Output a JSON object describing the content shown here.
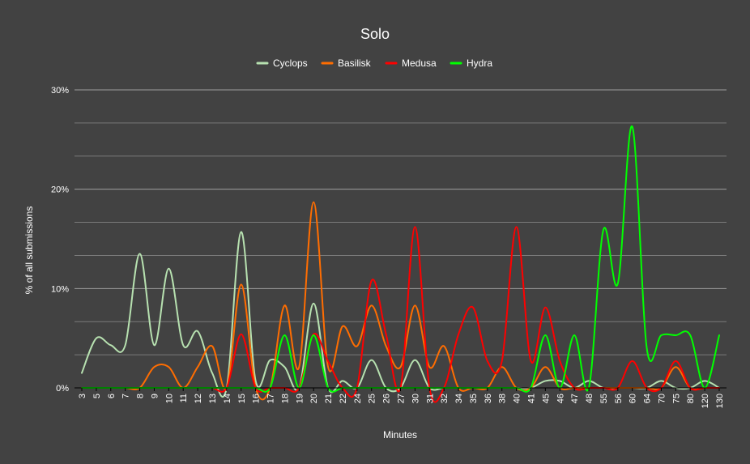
{
  "chart_data": {
    "type": "line",
    "title": "Solo",
    "xlabel": "Minutes",
    "ylabel": "% of all submissions",
    "ylim": [
      0,
      30
    ],
    "yticks": [
      0,
      10,
      20,
      30
    ],
    "ytick_labels": [
      "0%",
      "10%",
      "20%",
      "30%"
    ],
    "legend_position": "top",
    "grid": true,
    "categories": [
      "3",
      "5",
      "6",
      "7",
      "8",
      "9",
      "10",
      "11",
      "12",
      "13",
      "14",
      "15",
      "16",
      "17",
      "18",
      "19",
      "20",
      "21",
      "22",
      "24",
      "25",
      "26",
      "27",
      "30",
      "31",
      "32",
      "34",
      "35",
      "36",
      "38",
      "40",
      "41",
      "45",
      "46",
      "47",
      "48",
      "55",
      "56",
      "60",
      "64",
      "70",
      "75",
      "80",
      "120",
      "130"
    ],
    "series": [
      {
        "name": "Cyclops",
        "color": "#b7e1b0",
        "values": [
          1.5,
          5.0,
          4.3,
          4.3,
          13.5,
          4.3,
          12.0,
          4.3,
          5.7,
          1.5,
          0.0,
          15.7,
          0.7,
          2.8,
          2.1,
          0.0,
          8.5,
          0.0,
          0.7,
          0.0,
          2.8,
          0.0,
          0.0,
          2.8,
          0.0,
          0.0,
          0.0,
          0.0,
          0.0,
          0.0,
          0.0,
          0.0,
          0.7,
          0.7,
          0.0,
          0.7,
          0.0,
          0.0,
          0.0,
          0.0,
          0.7,
          0.0,
          0.0,
          0.7,
          0.0
        ]
      },
      {
        "name": "Basilisk",
        "color": "#ff6d01",
        "values": [
          0.0,
          0.0,
          0.0,
          0.0,
          0.0,
          2.1,
          2.1,
          0.0,
          2.1,
          4.2,
          0.0,
          10.4,
          0.0,
          0.0,
          8.3,
          2.1,
          18.7,
          2.1,
          6.2,
          4.2,
          8.3,
          4.2,
          2.1,
          8.3,
          2.1,
          4.2,
          0.0,
          0.0,
          0.0,
          2.1,
          0.0,
          0.0,
          2.1,
          0.0,
          0.0,
          0.0,
          0.0,
          0.0,
          0.0,
          0.0,
          0.0,
          2.1,
          0.0,
          0.0,
          0.0
        ]
      },
      {
        "name": "Medusa",
        "color": "#ff0000",
        "values": [
          0.0,
          0.0,
          0.0,
          0.0,
          0.0,
          0.0,
          0.0,
          0.0,
          0.0,
          0.0,
          0.0,
          5.4,
          0.0,
          0.0,
          0.0,
          0.0,
          5.4,
          2.7,
          0.0,
          0.0,
          10.8,
          5.4,
          0.0,
          16.2,
          0.0,
          0.0,
          5.4,
          8.1,
          2.7,
          2.7,
          16.2,
          2.7,
          8.1,
          2.7,
          0.0,
          0.0,
          0.0,
          0.0,
          2.7,
          0.0,
          0.0,
          2.7,
          0.0,
          0.0,
          0.0
        ]
      },
      {
        "name": "Hydra",
        "color": "#00ff00",
        "values": [
          0.0,
          0.0,
          0.0,
          0.0,
          0.0,
          0.0,
          0.0,
          0.0,
          0.0,
          0.0,
          0.0,
          0.0,
          0.0,
          0.0,
          5.3,
          0.0,
          5.3,
          0.0,
          0.0,
          0.0,
          0.0,
          0.0,
          0.0,
          0.0,
          0.0,
          0.0,
          0.0,
          0.0,
          0.0,
          0.0,
          0.0,
          0.0,
          5.3,
          0.0,
          5.3,
          0.0,
          15.9,
          10.5,
          26.3,
          4.0,
          5.3,
          5.3,
          5.3,
          0.0,
          5.3
        ]
      }
    ]
  }
}
